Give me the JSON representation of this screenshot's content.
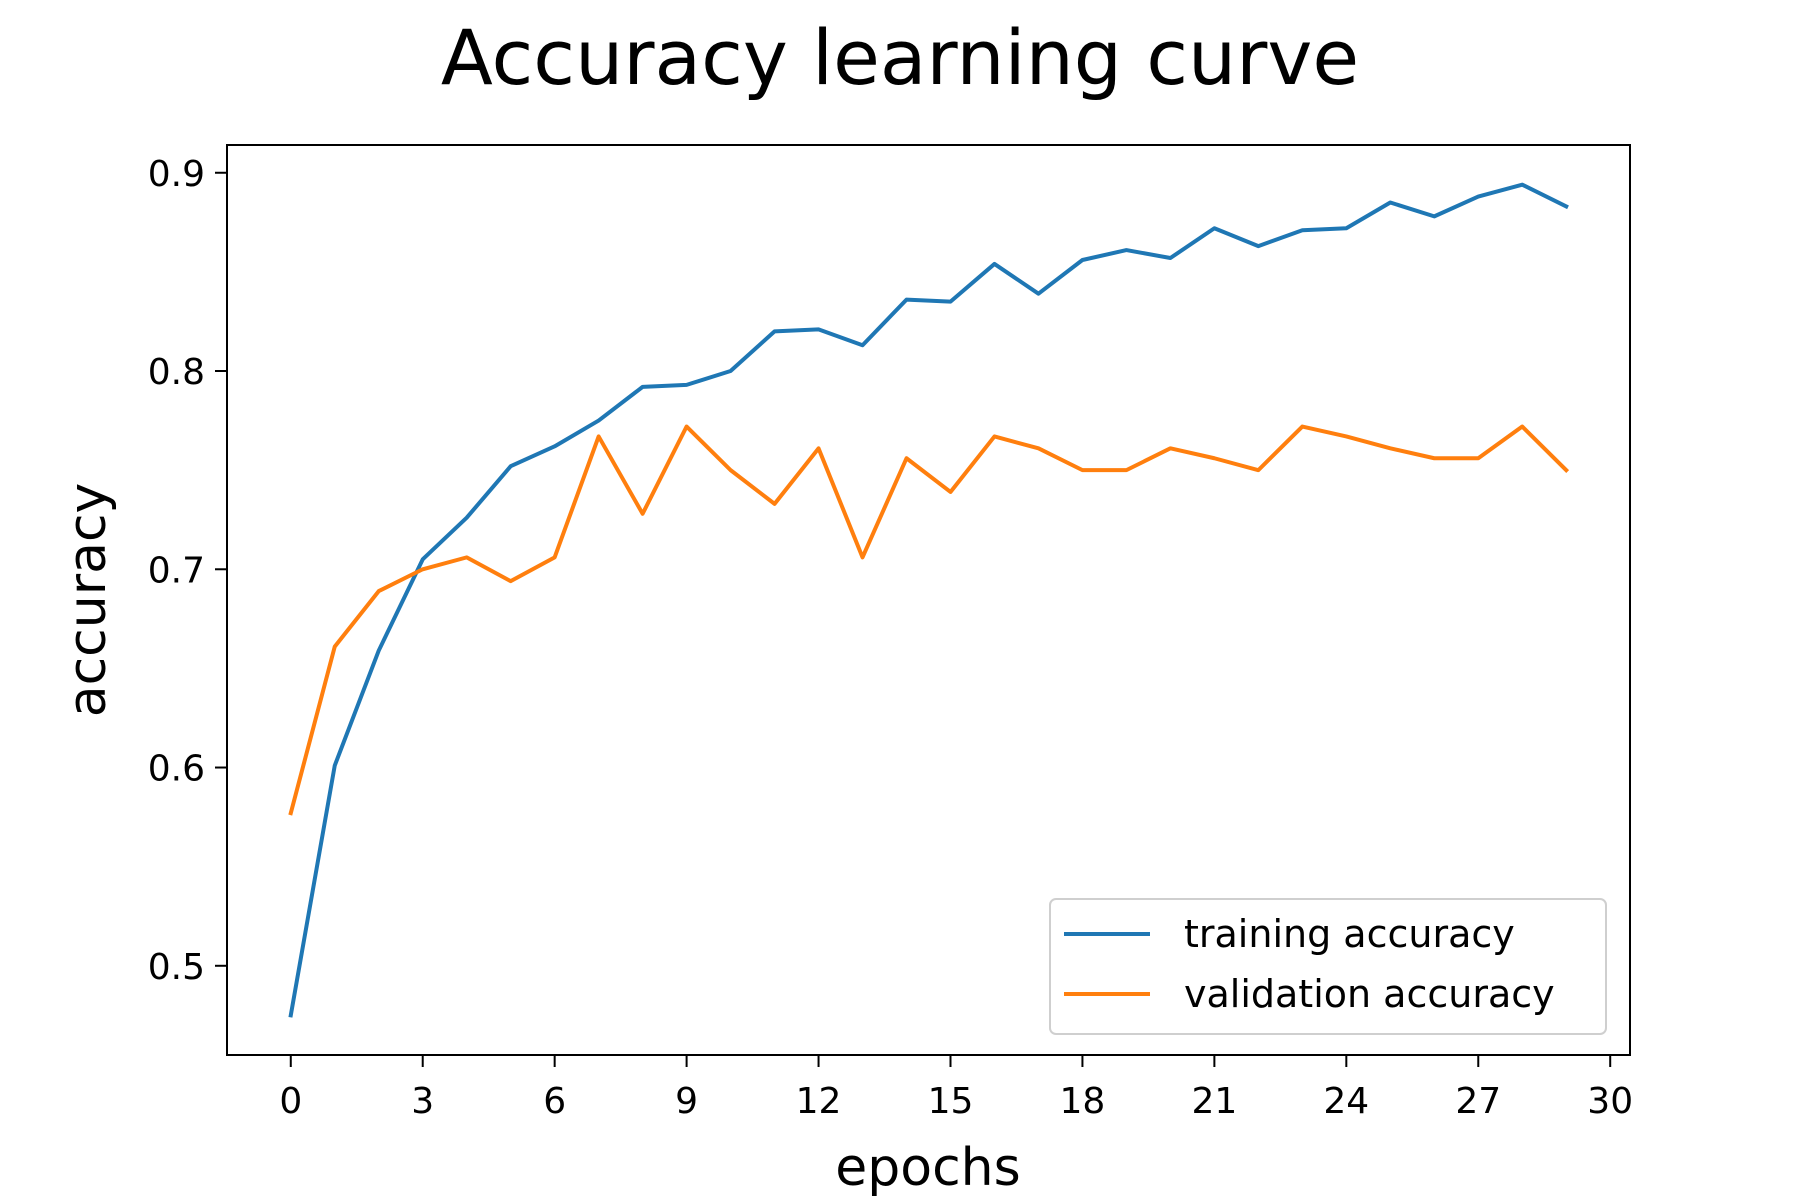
{
  "chart_data": {
    "type": "line",
    "title": "Accuracy learning curve",
    "xlabel": "epochs",
    "ylabel": "accuracy",
    "xlim": [
      -1.45,
      30.45
    ],
    "ylim": [
      0.455,
      0.914
    ],
    "xticks": [
      0,
      3,
      6,
      9,
      12,
      15,
      18,
      21,
      24,
      27,
      30
    ],
    "yticks": [
      0.5,
      0.6,
      0.7,
      0.8,
      0.9
    ],
    "ytick_labels": [
      "0.5",
      "0.6",
      "0.7",
      "0.8",
      "0.9"
    ],
    "grid": false,
    "legend_position": "lower-right",
    "x": [
      0,
      1,
      2,
      3,
      4,
      5,
      6,
      7,
      8,
      9,
      10,
      11,
      12,
      13,
      14,
      15,
      16,
      17,
      18,
      19,
      20,
      21,
      22,
      23,
      24,
      25,
      26,
      27,
      28,
      29
    ],
    "series": [
      {
        "name": "training accuracy",
        "color": "#1f77b4",
        "values": [
          0.475,
          0.601,
          0.659,
          0.705,
          0.726,
          0.752,
          0.762,
          0.775,
          0.792,
          0.793,
          0.8,
          0.82,
          0.821,
          0.813,
          0.836,
          0.835,
          0.854,
          0.839,
          0.856,
          0.861,
          0.857,
          0.872,
          0.863,
          0.871,
          0.872,
          0.885,
          0.878,
          0.888,
          0.894,
          0.883
        ]
      },
      {
        "name": "validation accuracy",
        "color": "#ff7f0e",
        "values": [
          0.577,
          0.661,
          0.689,
          0.7,
          0.706,
          0.694,
          0.706,
          0.767,
          0.728,
          0.772,
          0.75,
          0.733,
          0.761,
          0.706,
          0.756,
          0.739,
          0.767,
          0.761,
          0.75,
          0.75,
          0.761,
          0.756,
          0.75,
          0.772,
          0.767,
          0.761,
          0.756,
          0.756,
          0.772,
          0.75
        ]
      }
    ]
  }
}
